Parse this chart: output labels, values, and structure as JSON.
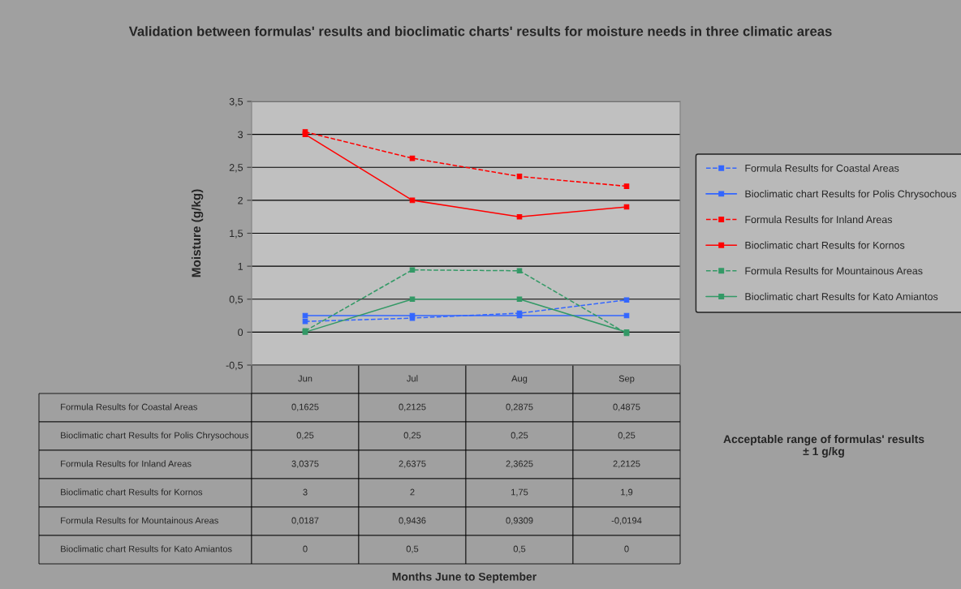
{
  "chart_data": {
    "type": "line",
    "title": "Validation between formulas' results and bioclimatic charts' results for moisture needs in three climatic areas",
    "ylabel": "Moisture (g/kg)",
    "categories": [
      "Jun",
      "Jul",
      "Aug",
      "Sep"
    ],
    "series": [
      {
        "name": "Formula Results for Coastal Areas",
        "color": "#3366ff",
        "line_style": "dashed",
        "values": [
          0.1625,
          0.2125,
          0.2875,
          0.4875
        ],
        "value_labels": [
          "0,1625",
          "0,2125",
          "0,2875",
          "0,4875"
        ]
      },
      {
        "name": "Bioclimatic chart Results for Polis Chrysochous",
        "color": "#3366ff",
        "line_style": "solid",
        "values": [
          0.25,
          0.25,
          0.25,
          0.25
        ],
        "value_labels": [
          "0,25",
          "0,25",
          "0,25",
          "0,25"
        ]
      },
      {
        "name": "Formula Results for Inland Areas",
        "color": "#ff0000",
        "line_style": "dashed",
        "values": [
          3.0375,
          2.6375,
          2.3625,
          2.2125
        ],
        "value_labels": [
          "3,0375",
          "2,6375",
          "2,3625",
          "2,2125"
        ]
      },
      {
        "name": "Bioclimatic chart Results for Kornos",
        "color": "#ff0000",
        "line_style": "solid",
        "values": [
          3,
          2,
          1.75,
          1.9
        ],
        "value_labels": [
          "3",
          "2",
          "1,75",
          "1,9"
        ]
      },
      {
        "name": "Formula Results for Mountainous Areas",
        "color": "#339966",
        "line_style": "dashed",
        "values": [
          0.0187,
          0.9436,
          0.9309,
          -0.0194
        ],
        "value_labels": [
          "0,0187",
          "0,9436",
          "0,9309",
          "-0,0194"
        ]
      },
      {
        "name": "Bioclimatic chart Results for Kato Amiantos",
        "color": "#339966",
        "line_style": "solid",
        "values": [
          0,
          0.5,
          0.5,
          0
        ],
        "value_labels": [
          "0",
          "0,5",
          "0,5",
          "0"
        ]
      }
    ],
    "ylim": [
      -0.5,
      3.5
    ],
    "yticks": [
      {
        "value": -0.5,
        "label": "-0,5"
      },
      0,
      {
        "value": 0.5,
        "label": "0,5"
      },
      1,
      {
        "value": 1.5,
        "label": "1,5"
      },
      2,
      {
        "value": 2.5,
        "label": "2,5"
      },
      3,
      {
        "value": 3.5,
        "label": "3,5"
      }
    ],
    "grid": "y",
    "legend": "right",
    "marker": "square",
    "annotations": [
      "Acceptable range of formulas' results\n± 1 g/kg",
      "Months June to September"
    ]
  }
}
